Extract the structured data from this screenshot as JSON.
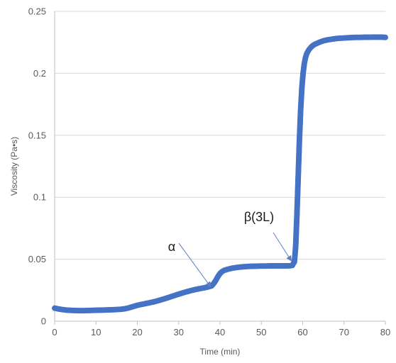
{
  "chart_data": {
    "type": "scatter",
    "xlabel": "Time (min)",
    "ylabel": "Viscosity (Pa•s)",
    "xlim": [
      0,
      80
    ],
    "ylim": [
      0,
      0.25
    ],
    "x_ticks": [
      "0",
      "10",
      "20",
      "30",
      "40",
      "50",
      "60",
      "70",
      "80"
    ],
    "y_ticks": [
      "0",
      "0.05",
      "0.1",
      "0.15",
      "0.2",
      "0.25"
    ],
    "grid": "horizontal",
    "legend": "none",
    "marker_color": "#4472C4",
    "annotations": [
      {
        "text": "α",
        "x": 38.0,
        "y": 0.027
      },
      {
        "text": "β(3L)",
        "x": 57.5,
        "y": 0.048
      }
    ],
    "series": [
      {
        "x": [
          0,
          1,
          2,
          3,
          4,
          5,
          6,
          7,
          8,
          9,
          10,
          11,
          12,
          13,
          14,
          15,
          16,
          17,
          18,
          19,
          20,
          21,
          22,
          23,
          24,
          25,
          26,
          27,
          28,
          29,
          30,
          31,
          32,
          33,
          34,
          35,
          36,
          37,
          38,
          38.5,
          39,
          39.5,
          40,
          40.5,
          41,
          42,
          43,
          44,
          45,
          46,
          47,
          48,
          49,
          50,
          51,
          52,
          53,
          54,
          55,
          56,
          57,
          57.5,
          58,
          58.3,
          58.6,
          58.9,
          59.2,
          59.5,
          59.8,
          60.1,
          60.4,
          60.7,
          61,
          61.5,
          62,
          62.5,
          63,
          64,
          65,
          66,
          67,
          68,
          69,
          70,
          71,
          72,
          73,
          74,
          75,
          76,
          77,
          78,
          79,
          80
        ],
        "y": [
          0.0105,
          0.0098,
          0.0093,
          0.0089,
          0.0087,
          0.0086,
          0.0085,
          0.0085,
          0.0086,
          0.0087,
          0.0088,
          0.0089,
          0.009,
          0.0091,
          0.0092,
          0.0094,
          0.0096,
          0.01,
          0.0108,
          0.0118,
          0.0128,
          0.0135,
          0.0142,
          0.0149,
          0.0156,
          0.0165,
          0.0175,
          0.0185,
          0.0196,
          0.0207,
          0.0218,
          0.0228,
          0.0238,
          0.0247,
          0.0255,
          0.0262,
          0.0268,
          0.0275,
          0.0285,
          0.0305,
          0.033,
          0.036,
          0.0385,
          0.04,
          0.041,
          0.042,
          0.0428,
          0.0433,
          0.0437,
          0.044,
          0.0442,
          0.0443,
          0.0444,
          0.0445,
          0.0445,
          0.0446,
          0.0446,
          0.0446,
          0.0446,
          0.0446,
          0.0447,
          0.045,
          0.048,
          0.06,
          0.085,
          0.115,
          0.145,
          0.17,
          0.188,
          0.2,
          0.208,
          0.213,
          0.216,
          0.219,
          0.221,
          0.2225,
          0.2235,
          0.225,
          0.2262,
          0.227,
          0.2275,
          0.228,
          0.2283,
          0.2285,
          0.2287,
          0.2289,
          0.229,
          0.229,
          0.2291,
          0.2291,
          0.2292,
          0.2292,
          0.2292,
          0.229
        ]
      }
    ]
  }
}
